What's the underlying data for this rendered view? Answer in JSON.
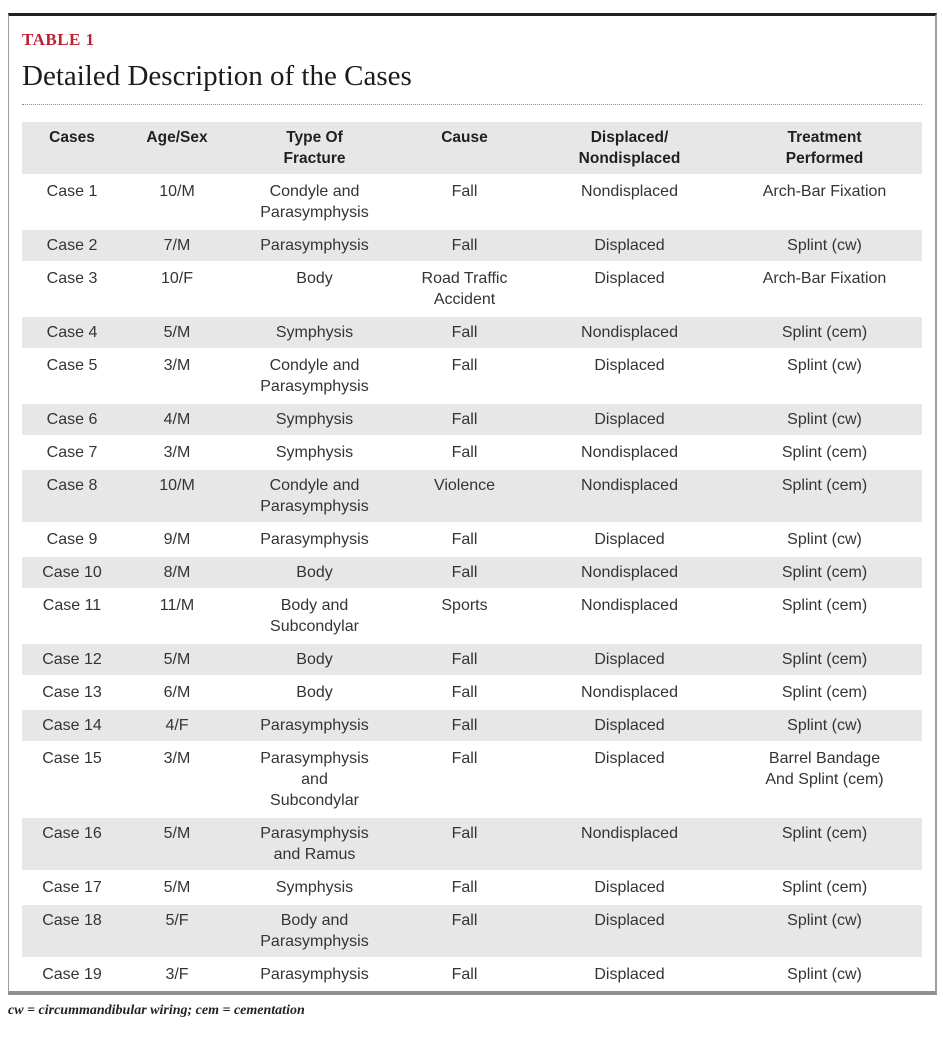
{
  "header": {
    "table_label": "TABLE 1",
    "title": "Detailed Description of the Cases"
  },
  "table": {
    "columns": [
      "Cases",
      "Age/Sex",
      "Type Of\nFracture",
      "Cause",
      "Displaced/\nNondisplaced",
      "Treatment\nPerformed"
    ],
    "rows": [
      [
        "Case 1",
        "10/M",
        "Condyle and\nParasymphysis",
        "Fall",
        "Nondisplaced",
        "Arch-Bar Fixation"
      ],
      [
        "Case 2",
        "7/M",
        "Parasymphysis",
        "Fall",
        "Displaced",
        "Splint (cw)"
      ],
      [
        "Case 3",
        "10/F",
        "Body",
        "Road Traffic\nAccident",
        "Displaced",
        "Arch-Bar Fixation"
      ],
      [
        "Case 4",
        "5/M",
        "Symphysis",
        "Fall",
        "Nondisplaced",
        "Splint (cem)"
      ],
      [
        "Case 5",
        "3/M",
        "Condyle and\nParasymphysis",
        "Fall",
        "Displaced",
        "Splint (cw)"
      ],
      [
        "Case 6",
        "4/M",
        "Symphysis",
        "Fall",
        "Displaced",
        "Splint (cw)"
      ],
      [
        "Case 7",
        "3/M",
        "Symphysis",
        "Fall",
        "Nondisplaced",
        "Splint (cem)"
      ],
      [
        "Case 8",
        "10/M",
        "Condyle and\nParasymphysis",
        "Violence",
        "Nondisplaced",
        "Splint (cem)"
      ],
      [
        "Case 9",
        "9/M",
        "Parasymphysis",
        "Fall",
        "Displaced",
        "Splint (cw)"
      ],
      [
        "Case 10",
        "8/M",
        "Body",
        "Fall",
        "Nondisplaced",
        "Splint (cem)"
      ],
      [
        "Case 11",
        "11/M",
        "Body and\nSubcondylar",
        "Sports",
        "Nondisplaced",
        "Splint (cem)"
      ],
      [
        "Case 12",
        "5/M",
        "Body",
        "Fall",
        "Displaced",
        "Splint (cem)"
      ],
      [
        "Case 13",
        "6/M",
        "Body",
        "Fall",
        "Nondisplaced",
        "Splint (cem)"
      ],
      [
        "Case 14",
        "4/F",
        "Parasymphysis",
        "Fall",
        "Displaced",
        "Splint (cw)"
      ],
      [
        "Case 15",
        "3/M",
        "Parasymphysis\nand\nSubcondylar",
        "Fall",
        "Displaced",
        "Barrel Bandage\nAnd Splint (cem)"
      ],
      [
        "Case 16",
        "5/M",
        "Parasymphysis\nand Ramus",
        "Fall",
        "Nondisplaced",
        "Splint (cem)"
      ],
      [
        "Case 17",
        "5/M",
        "Symphysis",
        "Fall",
        "Displaced",
        "Splint (cem)"
      ],
      [
        "Case 18",
        "5/F",
        "Body and\nParasymphysis",
        "Fall",
        "Displaced",
        "Splint (cw)"
      ],
      [
        "Case 19",
        "3/F",
        "Parasymphysis",
        "Fall",
        "Displaced",
        "Splint (cw)"
      ]
    ]
  },
  "footer": {
    "note": "cw = circummandibular wiring; cem = cementation"
  },
  "colors": {
    "accent_red": "#be2133",
    "row_stripe": "#e7e7e7",
    "header_bg": "#e7e7e7",
    "border_gray": "#9d9d9d",
    "border_top_dark": "#231f20"
  }
}
